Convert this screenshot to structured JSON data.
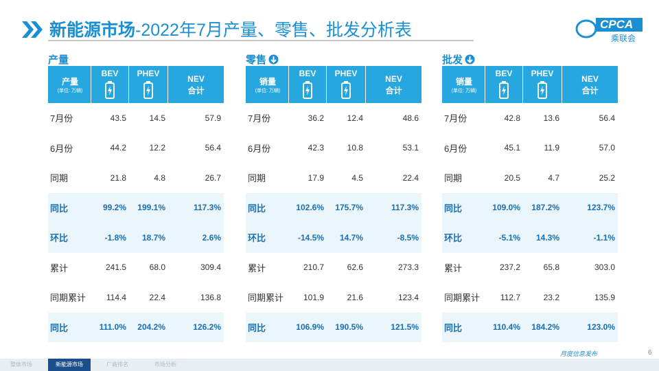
{
  "header": {
    "title_main": "新能源市场",
    "title_sub": "-2022年7月产量、零售、批发分析表",
    "logo_text": "CPCA",
    "logo_name": "乘联会"
  },
  "tables": [
    {
      "title": "产量",
      "corner_label": "产量",
      "corner_unit": "(单位: 万辆)",
      "columns": [
        {
          "name": "BEV"
        },
        {
          "name": "PHEV"
        },
        {
          "name": "NEV",
          "sub": "合计"
        }
      ],
      "rows": [
        {
          "label": "7月份",
          "cells": [
            "43.5",
            "14.5",
            "57.9"
          ]
        },
        {
          "label": "6月份",
          "cells": [
            "44.2",
            "12.2",
            "56.4"
          ]
        },
        {
          "label": "同期",
          "cells": [
            "21.8",
            "4.8",
            "26.7"
          ]
        },
        {
          "label": "同比",
          "cells": [
            "99.2%",
            "199.1%",
            "117.3%"
          ]
        },
        {
          "label": "环比",
          "cells": [
            "-1.8%",
            "18.7%",
            "2.6%"
          ]
        },
        {
          "label": "累计",
          "cells": [
            "241.5",
            "68.0",
            "309.4"
          ]
        },
        {
          "label": "同期累计",
          "cells": [
            "114.4",
            "22.4",
            "136.8"
          ]
        },
        {
          "label": "同比",
          "cells": [
            "111.0%",
            "204.2%",
            "126.2%"
          ]
        }
      ]
    },
    {
      "title": "零售",
      "corner_label": "销量",
      "corner_unit": "(单位: 万辆)",
      "columns": [
        {
          "name": "BEV"
        },
        {
          "name": "PHEV"
        },
        {
          "name": "NEV",
          "sub": "合计"
        }
      ],
      "rows": [
        {
          "label": "7月份",
          "cells": [
            "36.2",
            "12.4",
            "48.6"
          ]
        },
        {
          "label": "6月份",
          "cells": [
            "42.3",
            "10.8",
            "53.1"
          ]
        },
        {
          "label": "同期",
          "cells": [
            "17.9",
            "4.5",
            "22.4"
          ]
        },
        {
          "label": "同比",
          "cells": [
            "102.6%",
            "175.7%",
            "117.3%"
          ]
        },
        {
          "label": "环比",
          "cells": [
            "-14.5%",
            "14.7%",
            "-8.5%"
          ]
        },
        {
          "label": "累计",
          "cells": [
            "210.7",
            "62.6",
            "273.3"
          ]
        },
        {
          "label": "同期累计",
          "cells": [
            "101.9",
            "21.6",
            "123.4"
          ]
        },
        {
          "label": "同比",
          "cells": [
            "106.9%",
            "190.5%",
            "121.5%"
          ]
        }
      ]
    },
    {
      "title": "批发",
      "corner_label": "销量",
      "corner_unit": "(单位: 万辆)",
      "columns": [
        {
          "name": "BEV"
        },
        {
          "name": "PHEV"
        },
        {
          "name": "NEV",
          "sub": "合计"
        }
      ],
      "rows": [
        {
          "label": "7月份",
          "cells": [
            "42.8",
            "13.6",
            "56.4"
          ]
        },
        {
          "label": "6月份",
          "cells": [
            "45.1",
            "11.9",
            "57.0"
          ]
        },
        {
          "label": "同期",
          "cells": [
            "20.5",
            "4.7",
            "25.2"
          ]
        },
        {
          "label": "同比",
          "cells": [
            "109.0%",
            "187.2%",
            "123.7%"
          ]
        },
        {
          "label": "环比",
          "cells": [
            "-5.1%",
            "14.3%",
            "-1.1%"
          ]
        },
        {
          "label": "累计",
          "cells": [
            "237.2",
            "65.8",
            "303.0"
          ]
        },
        {
          "label": "同期累计",
          "cells": [
            "112.7",
            "23.2",
            "135.9"
          ]
        },
        {
          "label": "同比",
          "cells": [
            "110.4%",
            "184.2%",
            "123.0%"
          ]
        }
      ]
    }
  ],
  "footer": {
    "tabs": [
      "整体市场",
      "新能源市场",
      "厂商排名",
      "市场分析"
    ],
    "active_tab": 1,
    "note": "月度信息发布",
    "page": "6"
  }
}
